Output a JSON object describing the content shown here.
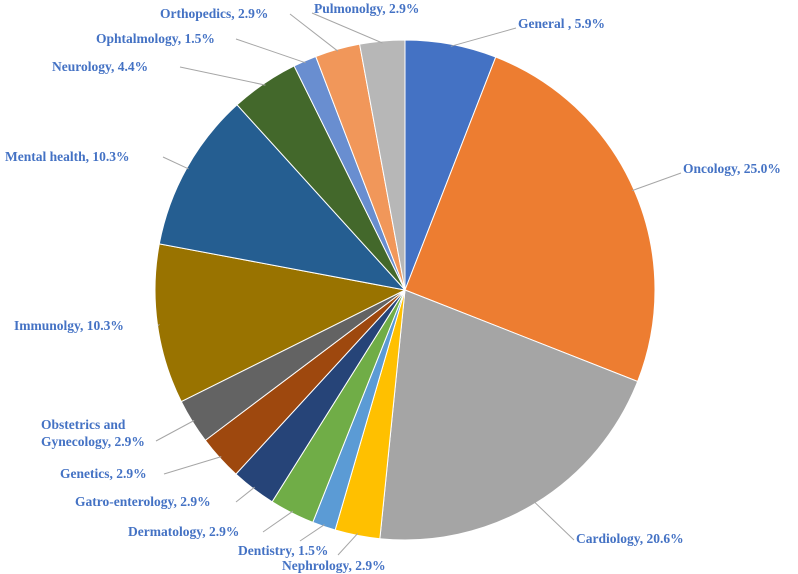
{
  "chart_data": {
    "type": "pie",
    "title": "",
    "categories": [
      "General",
      "Oncology",
      "Cardiology",
      "Nephrology",
      "Dentistry",
      "Dermatology",
      "Gatro-enterology",
      "Genetics",
      "Obstetrics and Gynecology",
      "Immunolgy",
      "Mental health",
      "Neurology",
      "Ophtalmology",
      "Orthopedics",
      "Pulmonolgy"
    ],
    "values": [
      5.9,
      25.0,
      20.6,
      2.9,
      1.5,
      2.9,
      2.9,
      2.9,
      2.9,
      10.3,
      10.3,
      4.4,
      1.5,
      2.9,
      2.9
    ],
    "labels": [
      {
        "line1": "General , 5.9%",
        "line2": ""
      },
      {
        "line1": "Oncology, 25.0%",
        "line2": ""
      },
      {
        "line1": "Cardiology, 20.6%",
        "line2": ""
      },
      {
        "line1": "Nephrology, 2.9%",
        "line2": ""
      },
      {
        "line1": "Dentistry, 1.5%",
        "line2": ""
      },
      {
        "line1": "Dermatology, 2.9%",
        "line2": ""
      },
      {
        "line1": "Gatro-enterology, 2.9%",
        "line2": ""
      },
      {
        "line1": "Genetics, 2.9%",
        "line2": ""
      },
      {
        "line1": "Obstetrics and",
        "line2": "Gynecology, 2.9%"
      },
      {
        "line1": "Immunolgy, 10.3%",
        "line2": ""
      },
      {
        "line1": "Mental health, 10.3%",
        "line2": ""
      },
      {
        "line1": "Neurology, 4.4%",
        "line2": ""
      },
      {
        "line1": "Ophtalmology, 1.5%",
        "line2": ""
      },
      {
        "line1": "Orthopedics, 2.9%",
        "line2": ""
      },
      {
        "line1": "Pulmonolgy, 2.9%",
        "line2": ""
      }
    ],
    "colors": [
      "#4472C4",
      "#ED7D31",
      "#A5A5A5",
      "#FFC000",
      "#5B9BD5",
      "#70AD47",
      "#264478",
      "#9E480E",
      "#636363",
      "#997300",
      "#255E91",
      "#43682B",
      "#698ED0",
      "#F1975A",
      "#B7B7B7"
    ],
    "label_color": "#4472C4",
    "legend": "none"
  }
}
